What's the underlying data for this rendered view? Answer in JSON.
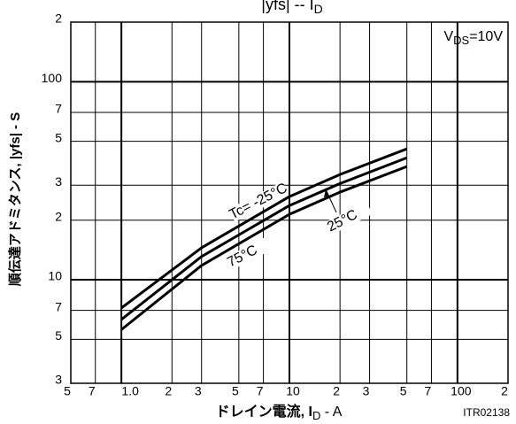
{
  "chart_data": {
    "type": "line",
    "title": "|yfs|  --  I",
    "title_sub": "D",
    "y_label": "順伝達アドミタンス, |yfs| - S",
    "x_label": "ドレイン電流, I",
    "x_label_sub": "D",
    "x_label_unit": " - A",
    "annotation_pre": "V",
    "annotation_sub": "DS",
    "annotation_post": "=10V",
    "figure_id": "ITR02138",
    "log_x": true,
    "log_y": true,
    "grid": true,
    "xlim": [
      0.5,
      200
    ],
    "ylim": [
      3,
      200
    ],
    "xticks": [
      {
        "value": 0.5,
        "label": "5"
      },
      {
        "value": 0.7,
        "label": "7"
      },
      {
        "value": 1,
        "label": "1.0"
      },
      2,
      3,
      5,
      7,
      10,
      {
        "value": 20,
        "label": "2"
      },
      {
        "value": 30,
        "label": "3"
      },
      {
        "value": 50,
        "label": "5"
      },
      {
        "value": 70,
        "label": "7"
      },
      100,
      {
        "value": 200,
        "label": "2"
      }
    ],
    "yticks": [
      3,
      5,
      7,
      10,
      {
        "value": 20,
        "label": "2"
      },
      {
        "value": 30,
        "label": "3"
      },
      {
        "value": 50,
        "label": "5"
      },
      {
        "value": 70,
        "label": "7"
      },
      100,
      {
        "value": 200,
        "label": "2"
      }
    ],
    "x": [
      1,
      3,
      10,
      20,
      50
    ],
    "series": [
      {
        "name": "Tc= -25°C",
        "color": "#000000",
        "values": [
          7.2,
          14.5,
          26.3,
          34,
          45.8
        ]
      },
      {
        "name": "25°C",
        "color": "#000000",
        "values": [
          6.3,
          13.1,
          23.7,
          30.6,
          41.3
        ]
      },
      {
        "name": "75°C",
        "color": "#000000",
        "values": [
          5.6,
          11.8,
          21.4,
          27.7,
          37.3
        ]
      }
    ]
  }
}
